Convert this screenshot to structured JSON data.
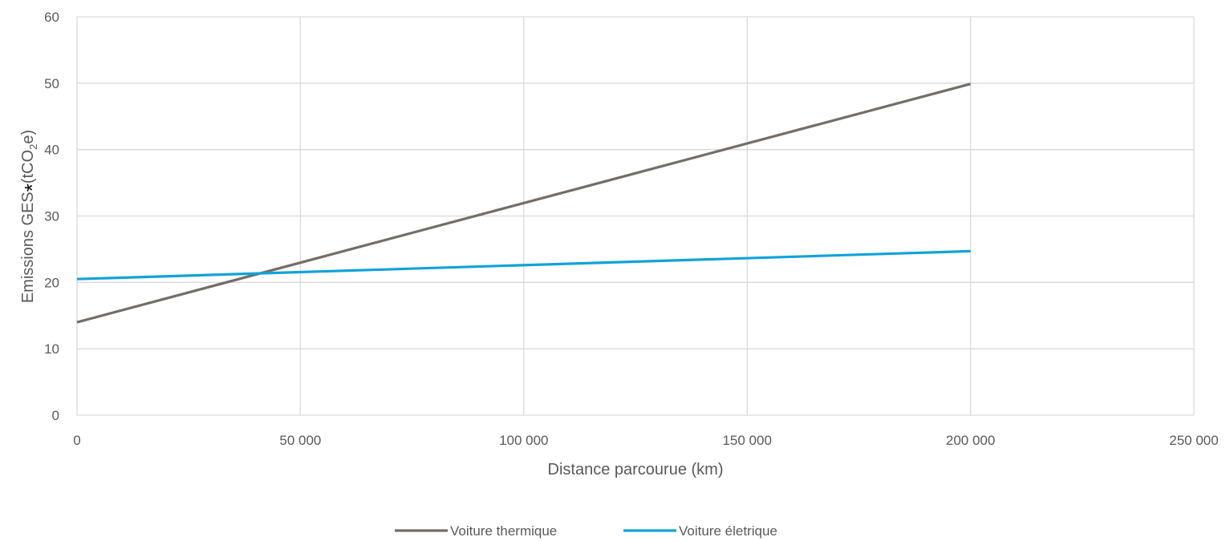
{
  "chart_data": {
    "type": "line",
    "xlabel": "Distance parcourue (km)",
    "ylabel": {
      "main": "Emissions GES",
      "star": "*",
      "unit_open": "(tCO",
      "unit_sub": "2",
      "unit_close": "e)"
    },
    "xlim": [
      0,
      250000
    ],
    "ylim": [
      0,
      60
    ],
    "x_ticks": [
      0,
      50000,
      100000,
      150000,
      200000,
      250000
    ],
    "x_tick_labels": [
      "0",
      "50 000",
      "100 000",
      "150 000",
      "200 000",
      "250 000"
    ],
    "y_ticks": [
      0,
      10,
      20,
      30,
      40,
      50,
      60
    ],
    "y_tick_labels": [
      "0",
      "10",
      "20",
      "30",
      "40",
      "50",
      "60"
    ],
    "grid": true,
    "legend_position": "bottom",
    "series": [
      {
        "name": "Voiture thermique",
        "color": "#746d66",
        "x": [
          0,
          200000
        ],
        "y": [
          14,
          49.9
        ]
      },
      {
        "name": "Voiture életrique",
        "color": "#10a3d8",
        "x": [
          0,
          200000
        ],
        "y": [
          20.5,
          24.7
        ]
      }
    ]
  }
}
